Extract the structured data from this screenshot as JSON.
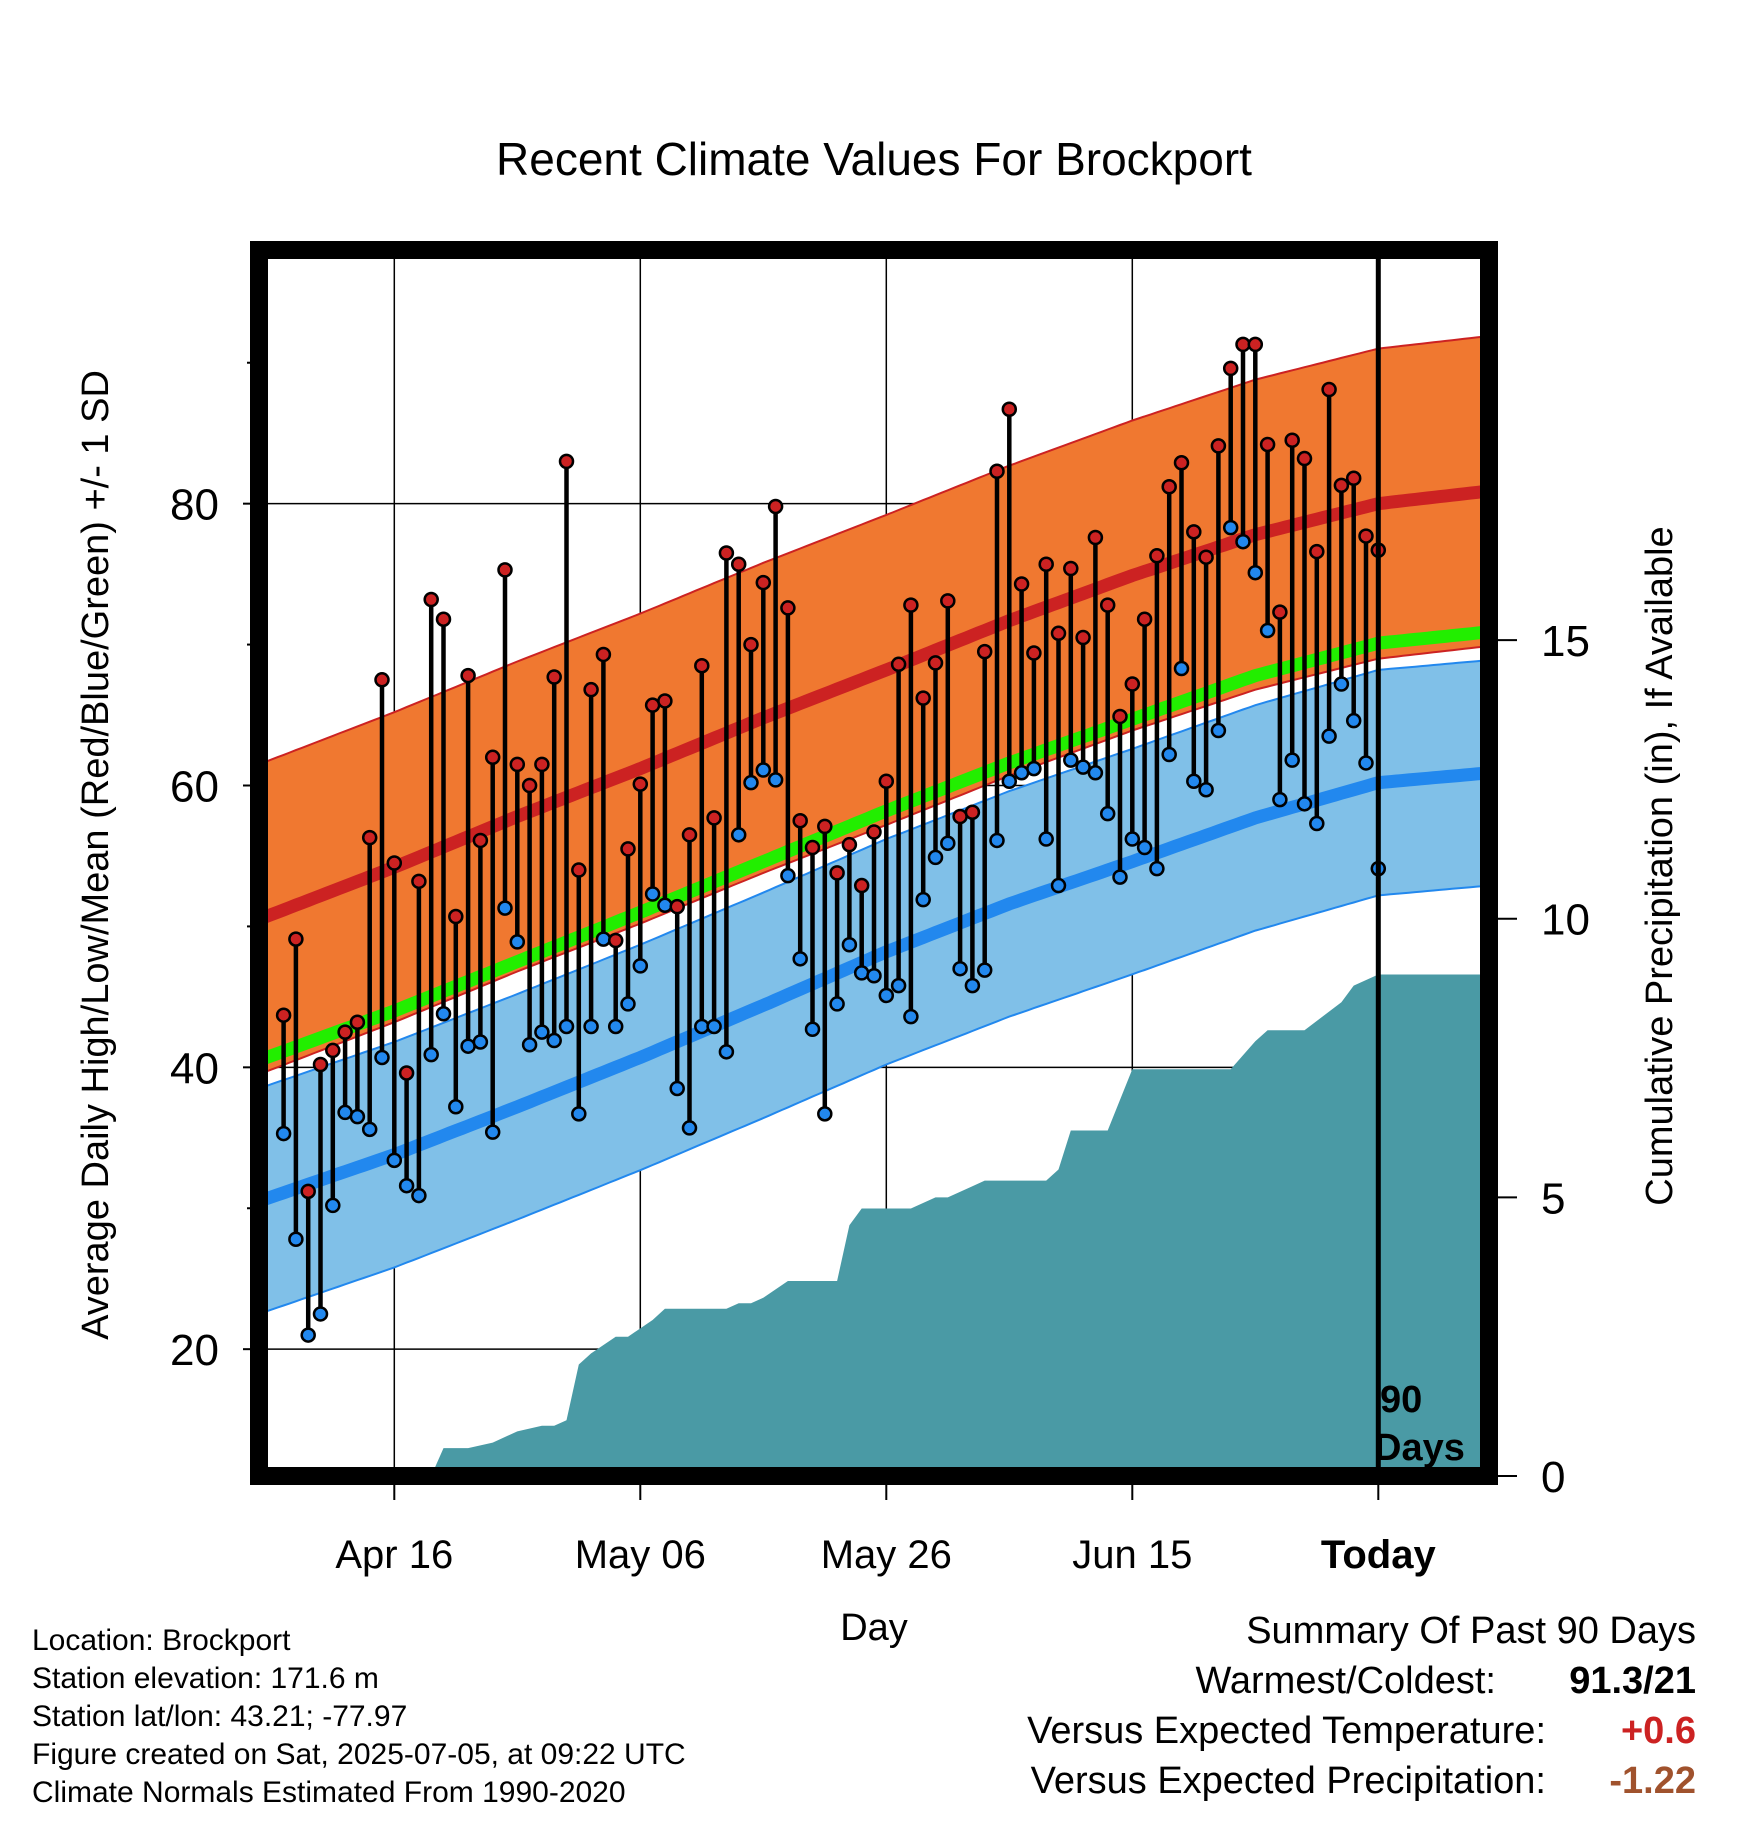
{
  "chart_data": {
    "type": "line",
    "title": "Recent Climate Values For Brockport",
    "xlabel": "Day",
    "ylabel": "Average Daily High/Low/Mean (Red/Blue/Green) +/- 1 SD",
    "y2label": "Cumulative Precipitation (in), If Available",
    "x_tick_labels": [
      "Apr 16",
      "May 06",
      "May 26",
      "Jun 15",
      "Today"
    ],
    "ylim": [
      11,
      98
    ],
    "yticks": [
      20,
      40,
      60,
      80
    ],
    "y2lim": [
      0,
      22
    ],
    "y2ticks": [
      0,
      5,
      10,
      15
    ],
    "xlim_days": [
      -91,
      9
    ],
    "annotation": {
      "line1": "90",
      "line2": "Days"
    },
    "normals": {
      "days": [
        -91,
        -80,
        -70,
        -60,
        -50,
        -40,
        -30,
        -20,
        -10,
        0,
        9
      ],
      "high_mean": [
        50.5,
        54.2,
        57.8,
        61.2,
        64.8,
        68.2,
        71.7,
        74.9,
        77.8,
        80.0,
        80.9
      ],
      "high_sd": 11,
      "mean": [
        40.5,
        44.0,
        47.5,
        51.0,
        54.6,
        58.2,
        61.6,
        64.7,
        67.8,
        70.1,
        70.9
      ],
      "low_mean": [
        30.5,
        33.8,
        37.2,
        40.7,
        44.4,
        48.2,
        51.6,
        54.6,
        57.7,
        60.2,
        60.9
      ],
      "low_sd": 8
    },
    "series": [
      {
        "name": "High",
        "color": "#cc2222",
        "values": [
          43.7,
          49.1,
          31.2,
          40.2,
          41.2,
          42.5,
          43.2,
          56.3,
          67.5,
          54.5,
          39.6,
          53.2,
          73.2,
          71.8,
          50.7,
          67.8,
          56.1,
          62.0,
          75.3,
          61.5,
          60.0,
          61.5,
          67.7,
          83.0,
          54.0,
          66.8,
          69.3,
          49.0,
          55.5,
          60.1,
          65.7,
          66.0,
          51.4,
          56.5,
          68.5,
          57.7,
          76.5,
          75.7,
          70.0,
          74.4,
          79.8,
          72.6,
          57.5,
          55.6,
          57.1,
          53.8,
          55.8,
          52.9,
          56.7,
          60.3,
          68.6,
          72.8,
          66.2,
          68.7,
          73.1,
          57.8,
          58.1,
          69.5,
          82.3,
          86.7,
          74.3,
          69.4,
          75.7,
          70.8,
          75.4,
          70.5,
          77.6,
          72.8,
          64.9,
          67.2,
          71.8,
          76.3,
          81.2,
          82.9,
          78.0,
          76.2,
          84.1,
          89.6,
          91.3,
          91.3,
          84.2,
          72.3,
          84.5,
          83.2,
          76.6,
          88.1,
          81.3,
          81.8,
          77.7,
          76.7
        ]
      },
      {
        "name": "Low",
        "color": "#2288ee",
        "values": [
          35.3,
          27.8,
          21.0,
          22.5,
          30.2,
          36.8,
          36.5,
          35.6,
          40.7,
          33.4,
          31.6,
          30.9,
          40.9,
          43.8,
          37.2,
          41.5,
          41.8,
          35.4,
          51.3,
          48.9,
          41.6,
          42.5,
          41.9,
          42.9,
          36.7,
          42.9,
          49.1,
          42.9,
          44.5,
          47.2,
          52.3,
          51.5,
          38.5,
          35.7,
          42.9,
          42.9,
          41.1,
          56.5,
          60.2,
          61.1,
          60.4,
          53.6,
          47.7,
          42.7,
          36.7,
          44.5,
          48.7,
          46.7,
          46.5,
          45.1,
          45.8,
          43.6,
          51.9,
          54.9,
          55.9,
          47.0,
          45.8,
          46.9,
          56.1,
          60.3,
          60.9,
          61.2,
          56.2,
          52.9,
          61.8,
          61.3,
          60.9,
          58.0,
          53.5,
          56.2,
          55.6,
          54.1,
          62.2,
          68.3,
          60.3,
          59.7,
          63.9,
          78.3,
          77.3,
          75.1,
          71.0,
          59.0,
          61.8,
          58.7,
          57.3,
          63.5,
          67.2,
          64.6,
          61.6,
          54.1
        ]
      }
    ],
    "precip_cumulative": {
      "days": [
        -91,
        -77,
        -76,
        -74,
        -72,
        -70,
        -68,
        -67,
        -66,
        -65,
        -64,
        -62,
        -61,
        -59,
        -58,
        -56,
        -55,
        -53,
        -52,
        -51,
        -50,
        -48,
        -46,
        -44,
        -43,
        -42,
        -41,
        -40,
        -38,
        -36,
        -35,
        -33,
        -32,
        -30,
        -29,
        -27,
        -26,
        -25,
        -24,
        -22,
        -20,
        -19,
        -18,
        -16,
        -15,
        -14,
        -12,
        -10,
        -9,
        -8,
        -6,
        -3,
        -2,
        0,
        9
      ],
      "values": [
        0,
        0,
        0.5,
        0.5,
        0.6,
        0.8,
        0.9,
        0.9,
        1.0,
        2.0,
        2.2,
        2.5,
        2.5,
        2.8,
        3.0,
        3.0,
        3.0,
        3.0,
        3.1,
        3.1,
        3.2,
        3.5,
        3.5,
        3.5,
        4.5,
        4.8,
        4.8,
        4.8,
        4.8,
        5.0,
        5.0,
        5.2,
        5.3,
        5.3,
        5.3,
        5.3,
        5.5,
        6.2,
        6.2,
        6.2,
        7.3,
        7.3,
        7.3,
        7.3,
        7.3,
        7.3,
        7.3,
        7.8,
        8.0,
        8.0,
        8.0,
        8.5,
        8.8,
        9.0,
        9.0
      ]
    }
  },
  "info": {
    "location": "Location: Brockport",
    "elevation": "Station elevation: 171.6 m",
    "latlon": "Station lat/lon: 43.21; -77.97",
    "created": "Figure created on Sat, 2025-07-05, at 09:22 UTC",
    "normals": "Climate Normals Estimated From 1990-2020"
  },
  "summary": {
    "title": "Summary Of Past 90 Days",
    "warmest_label": "Warmest/Coldest:",
    "warmest_value": "91.3/21",
    "temp_label": "Versus Expected Temperature:",
    "temp_value": "+0.6",
    "precip_label": "Versus Expected Precipitation:",
    "precip_value": "-1.22"
  },
  "colors": {
    "high_band": "#f07830",
    "high_mean": "#cc2222",
    "mean": "#22ee00",
    "low_band": "#80c0e8",
    "low_mean": "#2288ee",
    "precip": "#4a9aa5",
    "temp_value": "#cc2222",
    "precip_value": "#a0522d"
  }
}
